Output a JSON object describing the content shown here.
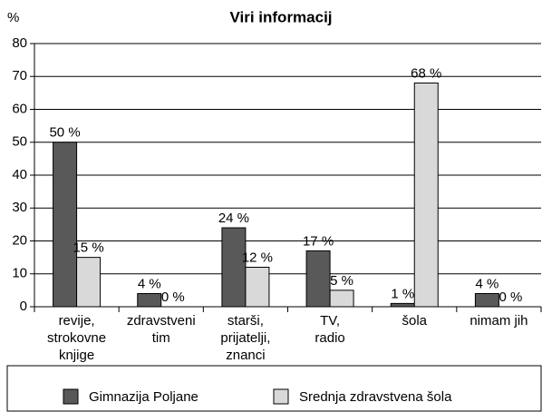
{
  "chart_data": {
    "type": "bar",
    "title": "Viri informacij",
    "y_label": "%",
    "categories": [
      "revije,\nstrokovne\nknjige",
      "zdravstveni\ntim",
      "starši,\nprijatelji,\nznanci",
      "TV,\nradio",
      "šola",
      "nimam jih"
    ],
    "series": [
      {
        "name": "Gimnazija Poljane",
        "color": "#595959",
        "values": [
          50,
          4,
          24,
          17,
          1,
          4
        ],
        "value_labels": [
          "50 %",
          "4 %",
          "24 %",
          "17 %",
          "1 %",
          "4 %"
        ]
      },
      {
        "name": "Srednja zdravstvena šola",
        "color": "#d9d9d9",
        "values": [
          15,
          0,
          12,
          5,
          68,
          0
        ],
        "value_labels": [
          "15 %",
          "0 %",
          "12 %",
          "5 %",
          "68 %",
          "0 %"
        ]
      }
    ],
    "ylim": [
      0,
      80
    ],
    "yticks": [
      0,
      10,
      20,
      30,
      40,
      50,
      60,
      70,
      80
    ],
    "grid": true,
    "legend": "bottom"
  }
}
